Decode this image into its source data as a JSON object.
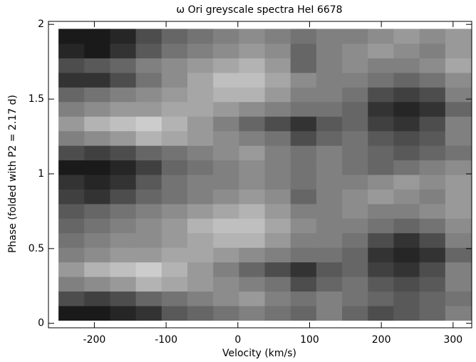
{
  "chart_data": {
    "type": "heatmap",
    "title": "ω Ori greyscale spectra   HeI 6678",
    "xlabel": "Velocity (km/s)",
    "ylabel": "Phase (folded with P2 = 2.17 d)",
    "xlim": [
      -264,
      326
    ],
    "ylim": [
      -0.03,
      2.02
    ],
    "xticks": [
      -200,
      -100,
      0,
      100,
      200,
      300
    ],
    "yticks": [
      0,
      0.5,
      1,
      1.5,
      2
    ],
    "image_xrange": [
      -250,
      325
    ],
    "image_yrange": [
      0.02,
      1.97
    ],
    "z": [
      [
        0.1,
        0.1,
        0.15,
        0.2,
        0.35,
        0.4,
        0.45,
        0.5,
        0.45,
        0.4,
        0.5,
        0.4,
        0.3,
        0.35,
        0.4,
        0.5
      ],
      [
        0.3,
        0.25,
        0.3,
        0.4,
        0.45,
        0.5,
        0.55,
        0.6,
        0.5,
        0.45,
        0.5,
        0.45,
        0.4,
        0.35,
        0.4,
        0.45
      ],
      [
        0.5,
        0.55,
        0.6,
        0.7,
        0.65,
        0.6,
        0.55,
        0.5,
        0.45,
        0.3,
        0.4,
        0.45,
        0.35,
        0.3,
        0.35,
        0.5
      ],
      [
        0.6,
        0.7,
        0.75,
        0.8,
        0.7,
        0.6,
        0.5,
        0.4,
        0.3,
        0.2,
        0.35,
        0.4,
        0.25,
        0.2,
        0.3,
        0.5
      ],
      [
        0.5,
        0.55,
        0.6,
        0.6,
        0.65,
        0.65,
        0.6,
        0.55,
        0.5,
        0.45,
        0.45,
        0.4,
        0.2,
        0.15,
        0.2,
        0.4
      ],
      [
        0.45,
        0.5,
        0.55,
        0.55,
        0.6,
        0.65,
        0.7,
        0.7,
        0.6,
        0.5,
        0.5,
        0.45,
        0.3,
        0.2,
        0.3,
        0.5
      ],
      [
        0.4,
        0.45,
        0.5,
        0.55,
        0.6,
        0.7,
        0.75,
        0.75,
        0.65,
        0.55,
        0.5,
        0.5,
        0.45,
        0.4,
        0.45,
        0.55
      ],
      [
        0.35,
        0.4,
        0.45,
        0.5,
        0.55,
        0.6,
        0.65,
        0.7,
        0.6,
        0.5,
        0.5,
        0.55,
        0.5,
        0.5,
        0.55,
        0.6
      ],
      [
        0.25,
        0.2,
        0.3,
        0.4,
        0.45,
        0.5,
        0.55,
        0.6,
        0.55,
        0.4,
        0.5,
        0.55,
        0.6,
        0.55,
        0.5,
        0.6
      ],
      [
        0.2,
        0.15,
        0.2,
        0.35,
        0.45,
        0.5,
        0.5,
        0.55,
        0.5,
        0.45,
        0.5,
        0.5,
        0.55,
        0.6,
        0.55,
        0.6
      ],
      [
        0.1,
        0.1,
        0.15,
        0.25,
        0.4,
        0.45,
        0.5,
        0.55,
        0.5,
        0.45,
        0.5,
        0.45,
        0.4,
        0.45,
        0.5,
        0.55
      ],
      [
        0.3,
        0.25,
        0.3,
        0.4,
        0.45,
        0.5,
        0.55,
        0.6,
        0.5,
        0.45,
        0.5,
        0.45,
        0.4,
        0.35,
        0.4,
        0.45
      ],
      [
        0.5,
        0.55,
        0.6,
        0.7,
        0.65,
        0.6,
        0.55,
        0.5,
        0.45,
        0.3,
        0.4,
        0.45,
        0.35,
        0.3,
        0.35,
        0.5
      ],
      [
        0.6,
        0.7,
        0.75,
        0.8,
        0.7,
        0.6,
        0.5,
        0.4,
        0.3,
        0.2,
        0.35,
        0.4,
        0.25,
        0.2,
        0.3,
        0.5
      ],
      [
        0.5,
        0.55,
        0.6,
        0.6,
        0.65,
        0.65,
        0.6,
        0.55,
        0.5,
        0.45,
        0.45,
        0.4,
        0.2,
        0.15,
        0.2,
        0.4
      ],
      [
        0.4,
        0.45,
        0.5,
        0.55,
        0.6,
        0.65,
        0.7,
        0.7,
        0.6,
        0.5,
        0.5,
        0.45,
        0.3,
        0.25,
        0.3,
        0.5
      ],
      [
        0.2,
        0.2,
        0.3,
        0.45,
        0.55,
        0.65,
        0.75,
        0.75,
        0.65,
        0.55,
        0.5,
        0.5,
        0.45,
        0.4,
        0.45,
        0.55
      ],
      [
        0.3,
        0.35,
        0.4,
        0.5,
        0.55,
        0.6,
        0.65,
        0.7,
        0.6,
        0.4,
        0.5,
        0.55,
        0.5,
        0.5,
        0.55,
        0.65
      ],
      [
        0.15,
        0.1,
        0.2,
        0.35,
        0.45,
        0.5,
        0.55,
        0.6,
        0.55,
        0.4,
        0.5,
        0.55,
        0.6,
        0.55,
        0.5,
        0.6
      ],
      [
        0.1,
        0.1,
        0.15,
        0.3,
        0.4,
        0.45,
        0.5,
        0.55,
        0.5,
        0.45,
        0.5,
        0.5,
        0.55,
        0.6,
        0.55,
        0.6
      ]
    ]
  }
}
